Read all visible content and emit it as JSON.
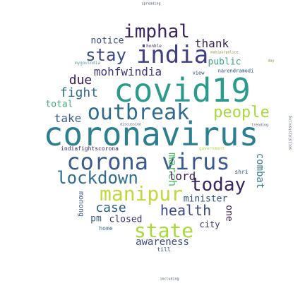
{
  "words": [
    {
      "text": "coronavirus",
      "color": "#2c7f8e",
      "weight": 1.0
    },
    {
      "text": "covid19",
      "color": "#2d9b8c",
      "weight": 0.92
    },
    {
      "text": "corona virus",
      "color": "#3b5b8c",
      "weight": 0.66
    },
    {
      "text": "outbreak",
      "color": "#2e6b8e",
      "weight": 0.6
    },
    {
      "text": "india",
      "color": "#3f3f86",
      "weight": 0.58
    },
    {
      "text": "manipur",
      "color": "#c2d83a",
      "weight": 0.5
    },
    {
      "text": "state",
      "color": "#a8da3a",
      "weight": 0.5
    },
    {
      "text": "lockdown",
      "color": "#2f6e8c",
      "weight": 0.46
    },
    {
      "text": "imphal",
      "color": "#3a245f",
      "weight": 0.44
    },
    {
      "text": "today",
      "color": "#3a245f",
      "weight": 0.44
    },
    {
      "text": "people",
      "color": "#a6d93d",
      "weight": 0.4
    },
    {
      "text": "stay",
      "color": "#3e4a86",
      "weight": 0.38
    },
    {
      "text": "health",
      "color": "#3d4a86",
      "weight": 0.36
    },
    {
      "text": "case",
      "color": "#2a5d86",
      "weight": 0.32
    },
    {
      "text": "fight",
      "color": "#2f6b8e",
      "weight": 0.3
    },
    {
      "text": "mohfwindia",
      "color": "#42357d",
      "weight": 0.28
    },
    {
      "text": "due",
      "color": "#3a1e54",
      "weight": 0.28
    },
    {
      "text": "march",
      "color": "#5ac26a",
      "weight": 0.28
    },
    {
      "text": "combat",
      "color": "#3f7f8a",
      "weight": 0.24
    },
    {
      "text": "thank",
      "color": "#3a1e54",
      "weight": 0.24
    },
    {
      "text": "lord",
      "color": "#3b1e56",
      "weight": 0.24
    },
    {
      "text": "minister",
      "color": "#2b4e7c",
      "weight": 0.2
    },
    {
      "text": "take",
      "color": "#3b5d8e",
      "weight": 0.22
    },
    {
      "text": "awareness",
      "color": "#3b4786",
      "weight": 0.2
    },
    {
      "text": "notice",
      "color": "#3a4a86",
      "weight": 0.18
    },
    {
      "text": "public",
      "color": "#40a486",
      "weight": 0.18
    },
    {
      "text": "total",
      "color": "#46b07a",
      "weight": 0.18
    },
    {
      "text": "closed",
      "color": "#3a2f78",
      "weight": 0.18
    },
    {
      "text": "pm",
      "color": "#3b5d8e",
      "weight": 0.18
    },
    {
      "text": "one",
      "color": "#3a1e54",
      "weight": 0.18
    },
    {
      "text": "city",
      "color": "#3d2f6e",
      "weight": 0.16
    },
    {
      "text": "monong",
      "color": "#3e5c8c",
      "weight": 0.12
    },
    {
      "text": "indiafightscorona",
      "color": "#3b2a66",
      "weight": 0.1
    },
    {
      "text": "home",
      "color": "#3a6a8e",
      "weight": 0.1
    },
    {
      "text": "till",
      "color": "#2f4a80",
      "weight": 0.1
    },
    {
      "text": "shri",
      "color": "#2f4a80",
      "weight": 0.1
    },
    {
      "text": "narendramodi",
      "color": "#2f4a80",
      "weight": 0.08
    },
    {
      "text": "view",
      "color": "#333d7a",
      "weight": 0.08
    },
    {
      "text": "mygovindia",
      "color": "#5c9a8e",
      "weight": 0.08
    },
    {
      "text": "honble",
      "color": "#3b2a66",
      "weight": 0.07
    },
    {
      "text": "government",
      "color": "#b6d94a",
      "weight": 0.07
    },
    {
      "text": "discussion",
      "color": "#4a5a88",
      "weight": 0.06
    },
    {
      "text": "trending",
      "color": "#4a5a88",
      "weight": 0.06
    },
    {
      "text": "including",
      "color": "#4a5a88",
      "weight": 0.06
    },
    {
      "text": "socialdistancing",
      "color": "#4a5a88",
      "weight": 0.05
    },
    {
      "text": "spreading",
      "color": "#4a5a88",
      "weight": 0.05
    },
    {
      "text": "day",
      "color": "#8a8a40",
      "weight": 0.05
    },
    {
      "text": "manipurpolice",
      "color": "#8a8a40",
      "weight": 0.05
    }
  ]
}
